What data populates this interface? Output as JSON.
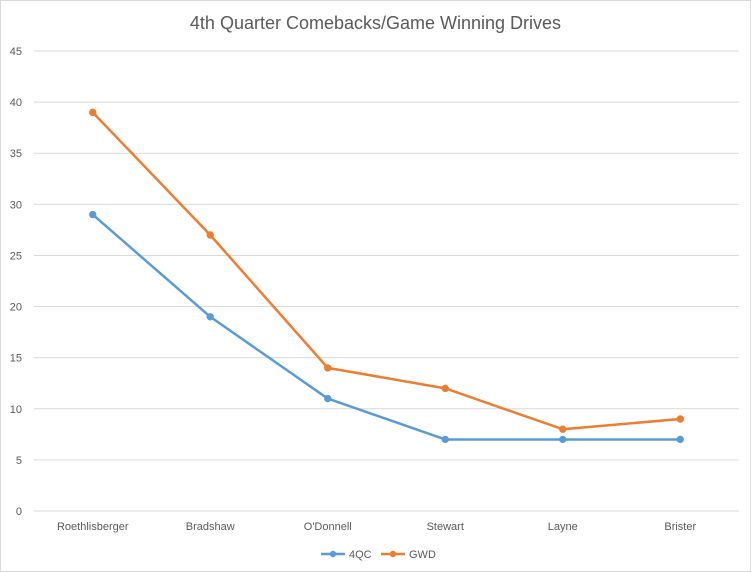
{
  "chart_data": {
    "type": "line",
    "title": "4th Quarter Comebacks/Game Winning Drives",
    "xlabel": "",
    "ylabel": "",
    "categories": [
      "Roethlisberger",
      "Bradshaw",
      "O'Donnell",
      "Stewart",
      "Layne",
      "Brister"
    ],
    "series": [
      {
        "name": "4QC",
        "values": [
          29,
          19,
          11,
          7,
          7,
          7
        ],
        "color": "#5b9bd5"
      },
      {
        "name": "GWD",
        "values": [
          39,
          27,
          14,
          12,
          8,
          9
        ],
        "color": "#ed7d31"
      }
    ],
    "ylim": [
      0,
      45
    ],
    "yticks": [
      0,
      5,
      10,
      15,
      20,
      25,
      30,
      35,
      40,
      45
    ],
    "grid": true,
    "legend": "bottom"
  }
}
